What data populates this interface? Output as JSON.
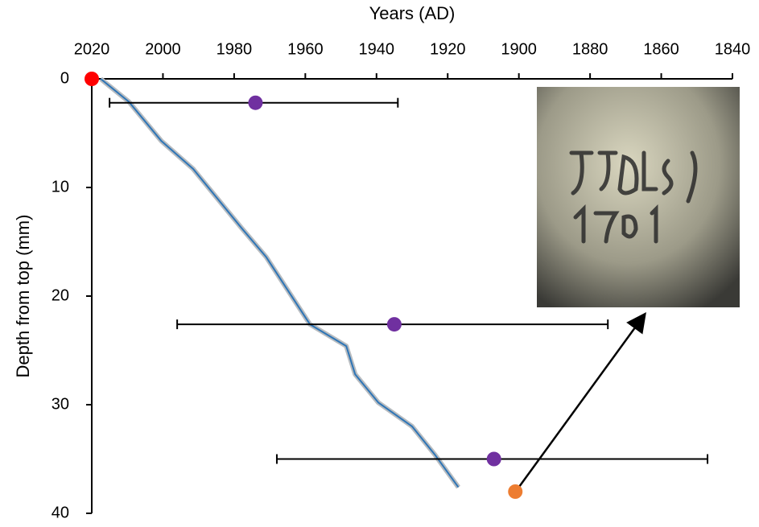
{
  "chart_data": {
    "type": "scatter",
    "x_label": "Years (AD)",
    "y_label": "Depth from top (mm)",
    "xlim": [
      2020,
      1840
    ],
    "xticks": [
      2020,
      2000,
      1980,
      1960,
      1940,
      1920,
      1900,
      1880,
      1860,
      1840
    ],
    "ylim": [
      0,
      40
    ],
    "yticks": [
      0,
      10,
      20,
      30,
      40
    ],
    "y_reversed": true,
    "x_axis_position": "top",
    "series": [
      {
        "mode": "line",
        "color": "#2e75b6",
        "halo_color": "#b8bcc0",
        "x": [
          2017.5,
          2009.6,
          2000.5,
          1991.5,
          1978,
          1971,
          1958.7,
          1948.5,
          1946,
          1939.5,
          1930,
          1923.6,
          1917
        ],
        "y": [
          0,
          2.1,
          5.7,
          8.3,
          13.7,
          16.4,
          22.6,
          24.6,
          27.2,
          29.8,
          32,
          34.6,
          37.6
        ]
      },
      {
        "mode": "marker",
        "color": "#7030a0",
        "x": [
          1974,
          1935,
          1907
        ],
        "y": [
          2.2,
          22.6,
          35
        ],
        "x_low": [
          2015,
          1996,
          1968
        ],
        "x_high": [
          1934,
          1875,
          1847
        ]
      },
      {
        "mode": "marker",
        "color": "#ed7d31",
        "x": [
          1901
        ],
        "y": [
          38
        ]
      },
      {
        "mode": "marker",
        "color": "#ff0000",
        "x": [
          2020
        ],
        "y": [
          0
        ]
      }
    ]
  }
}
